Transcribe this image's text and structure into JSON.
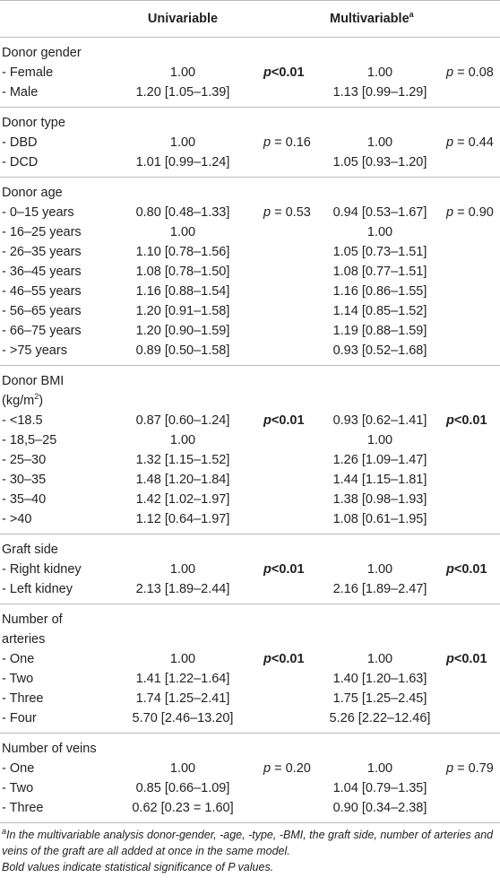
{
  "header": {
    "univariable": "Univariable",
    "multivariable": "Multivariable",
    "multivariable_sup": "a"
  },
  "groups": [
    {
      "title": [
        {
          "text": "Donor gender"
        }
      ],
      "rows": [
        {
          "label": "- Female",
          "uni": "1.00",
          "p_uni": {
            "text": "p<0.01",
            "bold": true
          },
          "multi": "1.00",
          "p_multi": {
            "text": "p = 0.08",
            "bold": false
          }
        },
        {
          "label": "- Male",
          "uni": "1.20 [1.05–1.39]",
          "multi": "1.13 [0.99–1.29]"
        }
      ]
    },
    {
      "title": [
        {
          "text": "Donor type"
        }
      ],
      "rows": [
        {
          "label": "- DBD",
          "uni": "1.00",
          "p_uni": {
            "text": "p = 0.16",
            "bold": false
          },
          "multi": "1.00",
          "p_multi": {
            "text": "p = 0.44",
            "bold": false
          }
        },
        {
          "label": "- DCD",
          "uni": "1.01 [0.99–1.24]",
          "multi": "1.05 [0.93–1.20]"
        }
      ]
    },
    {
      "title": [
        {
          "text": "Donor age"
        }
      ],
      "rows": [
        {
          "label": "- 0–15 years",
          "uni": "0.80 [0.48–1.33]",
          "p_uni": {
            "text": "p = 0.53",
            "bold": false
          },
          "multi": "0.94 [0.53–1.67]",
          "p_multi": {
            "text": "p = 0.90",
            "bold": false
          }
        },
        {
          "label": "- 16–25 years",
          "uni": "1.00",
          "multi": "1.00"
        },
        {
          "label": "- 26–35 years",
          "uni": "1.10 [0.78–1.56]",
          "multi": "1.05 [0.73–1.51]"
        },
        {
          "label": "- 36–45 years",
          "uni": "1.08 [0.78–1.50]",
          "multi": "1.08 [0.77–1.51]"
        },
        {
          "label": "- 46–55 years",
          "uni": "1.16 [0.88–1.54]",
          "multi": "1.16 [0.86–1.55]"
        },
        {
          "label": "- 56–65 years",
          "uni": "1.20 [0.91–1.58]",
          "multi": "1.14 [0.85–1.52]"
        },
        {
          "label": "- 66–75 years",
          "uni": "1.20 [0.90–1.59]",
          "multi": "1.19 [0.88–1.59]"
        },
        {
          "label": "- >75 years",
          "uni": "0.89 [0.50–1.58]",
          "multi": "0.93 [0.52–1.68]"
        }
      ]
    },
    {
      "title": [
        {
          "text": "Donor BMI (kg/m"
        },
        {
          "text": "2",
          "sup": true
        },
        {
          "text": ")"
        }
      ],
      "rows": [
        {
          "label": "- <18.5",
          "uni": "0.87 [0.60–1.24]",
          "p_uni": {
            "text": "p<0.01",
            "bold": true
          },
          "multi": "0.93 [0.62–1.41]",
          "p_multi": {
            "text": "p<0.01",
            "bold": true
          }
        },
        {
          "label": "- 18,5–25",
          "uni": "1.00",
          "multi": "1.00"
        },
        {
          "label": "- 25–30",
          "uni": "1.32 [1.15–1.52]",
          "multi": "1.26 [1.09–1.47]"
        },
        {
          "label": "- 30–35",
          "uni": "1.48 [1.20–1.84]",
          "multi": "1.44 [1.15–1.81]"
        },
        {
          "label": "- 35–40",
          "uni": "1.42 [1.02–1.97]",
          "multi": "1.38 [0.98–1.93]"
        },
        {
          "label": "- >40",
          "uni": "1.12 [0.64–1.97]",
          "multi": "1.08 [0.61–1.95]"
        }
      ]
    },
    {
      "title": [
        {
          "text": "Graft side"
        }
      ],
      "rows": [
        {
          "label": "- Right kidney",
          "uni": "1.00",
          "p_uni": {
            "text": "p<0.01",
            "bold": true
          },
          "multi": "1.00",
          "p_multi": {
            "text": "p<0.01",
            "bold": true
          }
        },
        {
          "label": "- Left kidney",
          "uni": "2.13 [1.89–2.44]",
          "multi": "2.16 [1.89–2.47]"
        }
      ]
    },
    {
      "title": [
        {
          "text": "Number of arteries"
        }
      ],
      "rows": [
        {
          "label": "- One",
          "uni": "1.00",
          "p_uni": {
            "text": "p<0.01",
            "bold": true
          },
          "multi": "1.00",
          "p_multi": {
            "text": "p<0.01",
            "bold": true
          }
        },
        {
          "label": "- Two",
          "uni": "1.41 [1.22–1.64]",
          "multi": "1.40 [1.20–1.63]"
        },
        {
          "label": "- Three",
          "uni": "1.74 [1.25–2.41]",
          "multi": "1.75 [1.25–2.45]"
        },
        {
          "label": "- Four",
          "uni": "5.70 [2.46–13.20]",
          "multi": "5.26 [2.22–12.46]"
        }
      ]
    },
    {
      "title": [
        {
          "text": "Number of veins"
        }
      ],
      "rows": [
        {
          "label": "- One",
          "uni": "1.00",
          "p_uni": {
            "text": "p = 0.20",
            "bold": false
          },
          "multi": "1.00",
          "p_multi": {
            "text": "p = 0.79",
            "bold": false
          }
        },
        {
          "label": "- Two",
          "uni": "0.85 [0.66–1.09]",
          "multi": "1.04 [0.79–1.35]"
        },
        {
          "label": "- Three",
          "uni": "0.62 [0.23 = 1.60]",
          "multi": "0.90 [0.34–2.38]"
        }
      ]
    }
  ],
  "footnote": {
    "sup": "a",
    "text": "In the multivariable analysis donor-gender, -age, -type, -BMI, the graft side, number of arteries and veins of the graft are all added at once in the same model.",
    "note": "Bold values indicate statistical significance of P values."
  }
}
